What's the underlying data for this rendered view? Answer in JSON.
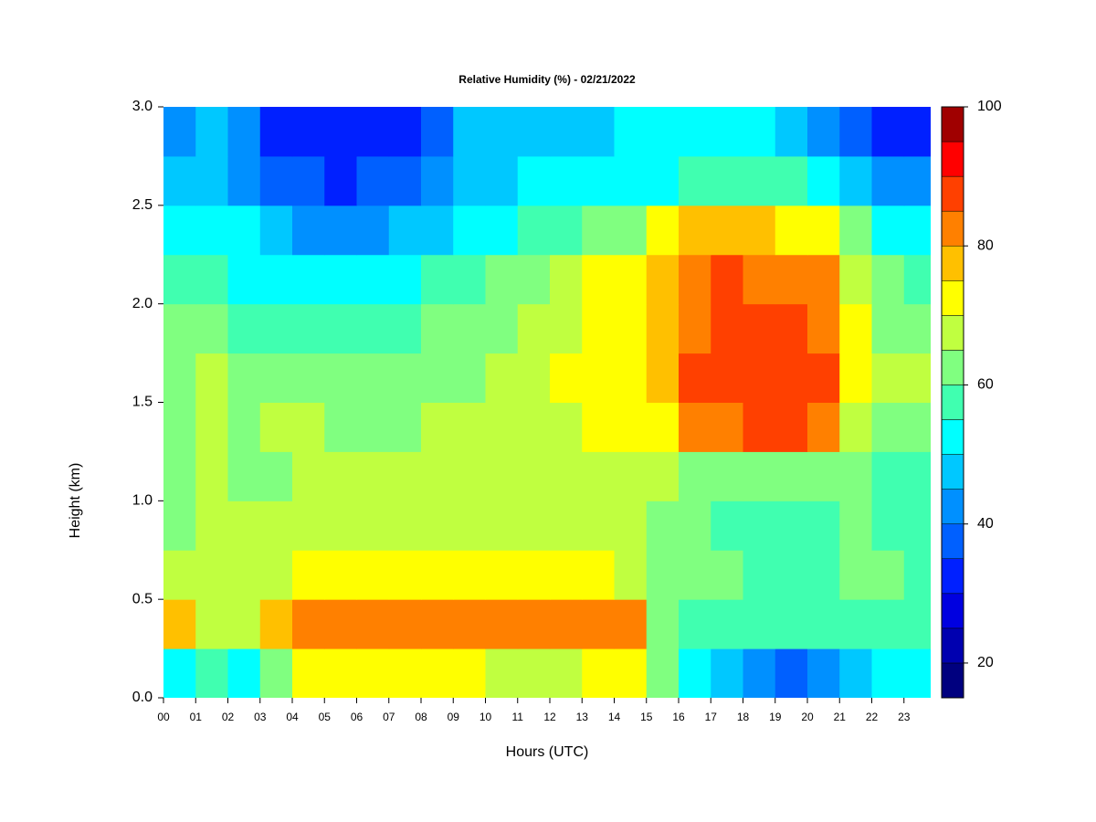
{
  "chart_data": {
    "type": "heatmap",
    "title": "Relative Humidity (%) - 02/21/2022",
    "x_label": "Hours (UTC)",
    "y_label": "Height (km)",
    "xlim": [
      0,
      23.83
    ],
    "ylim": [
      0,
      3
    ],
    "xticks": [
      {
        "value": 0,
        "label": "00"
      },
      {
        "value": 1,
        "label": "01"
      },
      {
        "value": 2,
        "label": "02"
      },
      {
        "value": 3,
        "label": "03"
      },
      {
        "value": 4,
        "label": "04"
      },
      {
        "value": 5,
        "label": "05"
      },
      {
        "value": 6,
        "label": "06"
      },
      {
        "value": 7,
        "label": "07"
      },
      {
        "value": 8,
        "label": "08"
      },
      {
        "value": 9,
        "label": "09"
      },
      {
        "value": 10,
        "label": "10"
      },
      {
        "value": 11,
        "label": "11"
      },
      {
        "value": 12,
        "label": "12"
      },
      {
        "value": 13,
        "label": "13"
      },
      {
        "value": 14,
        "label": "14"
      },
      {
        "value": 15,
        "label": "15"
      },
      {
        "value": 16,
        "label": "16"
      },
      {
        "value": 17,
        "label": "17"
      },
      {
        "value": 18,
        "label": "18"
      },
      {
        "value": 19,
        "label": "19"
      },
      {
        "value": 20,
        "label": "20"
      },
      {
        "value": 21,
        "label": "21"
      },
      {
        "value": 22,
        "label": "22"
      },
      {
        "value": 23,
        "label": "23"
      }
    ],
    "yticks": [
      {
        "value": 0,
        "label": "0.0"
      },
      0.5,
      {
        "value": 1,
        "label": "1.0"
      },
      1.5,
      {
        "value": 2,
        "label": "2.0"
      },
      2.5,
      {
        "value": 3,
        "label": "3.0"
      }
    ],
    "x": [
      0.5,
      1.5,
      2.5,
      3.5,
      4.5,
      5.5,
      6.5,
      7.5,
      8.5,
      9.5,
      10.5,
      11.5,
      12.5,
      13.5,
      14.5,
      15.5,
      16.5,
      17.5,
      18.5,
      19.5,
      20.5,
      21.5,
      22.5,
      23.5
    ],
    "y": [
      0.125,
      0.375,
      0.625,
      0.875,
      1.125,
      1.375,
      1.625,
      1.875,
      2.125,
      2.375,
      2.625,
      2.875
    ],
    "z": [
      [
        50,
        55,
        50,
        62,
        70,
        72,
        72,
        72,
        70,
        70,
        68,
        66,
        68,
        70,
        70,
        60,
        50,
        45,
        42,
        38,
        40,
        48,
        50,
        50
      ],
      [
        75,
        65,
        68,
        78,
        82,
        83,
        82,
        82,
        82,
        81,
        82,
        82,
        81,
        81,
        80,
        62,
        58,
        58,
        57,
        56,
        56,
        57,
        57,
        56
      ],
      [
        65,
        66,
        66,
        68,
        72,
        70,
        70,
        72,
        70,
        70,
        70,
        70,
        70,
        70,
        68,
        64,
        60,
        60,
        58,
        58,
        58,
        60,
        60,
        58
      ],
      [
        62,
        65,
        65,
        65,
        68,
        68,
        68,
        67,
        68,
        68,
        68,
        68,
        68,
        68,
        66,
        64,
        60,
        58,
        58,
        58,
        58,
        60,
        58,
        57
      ],
      [
        62,
        66,
        62,
        64,
        66,
        66,
        66,
        66,
        67,
        68,
        68,
        68,
        68,
        68,
        68,
        66,
        62,
        60,
        60,
        60,
        60,
        60,
        58,
        56
      ],
      [
        64,
        68,
        64,
        65,
        65,
        64,
        64,
        64,
        65,
        65,
        66,
        67,
        68,
        70,
        70,
        70,
        80,
        84,
        86,
        86,
        84,
        66,
        62,
        60
      ],
      [
        64,
        66,
        64,
        62,
        62,
        62,
        62,
        62,
        63,
        64,
        66,
        68,
        70,
        74,
        74,
        75,
        86,
        88,
        88,
        88,
        87,
        72,
        66,
        66
      ],
      [
        60,
        60,
        58,
        58,
        58,
        58,
        58,
        58,
        60,
        62,
        64,
        66,
        68,
        72,
        73,
        75,
        84,
        86,
        86,
        86,
        84,
        70,
        64,
        60
      ],
      [
        55,
        55,
        54,
        52,
        50,
        50,
        50,
        52,
        55,
        58,
        60,
        64,
        66,
        70,
        72,
        76,
        84,
        85,
        84,
        84,
        80,
        66,
        60,
        55
      ],
      [
        52,
        52,
        50,
        45,
        43,
        42,
        44,
        46,
        48,
        50,
        54,
        56,
        58,
        60,
        62,
        70,
        76,
        76,
        76,
        74,
        70,
        60,
        54,
        50
      ],
      [
        45,
        48,
        42,
        38,
        35,
        34,
        35,
        36,
        40,
        45,
        48,
        50,
        50,
        52,
        54,
        54,
        56,
        58,
        56,
        55,
        52,
        45,
        42,
        40
      ],
      [
        42,
        45,
        40,
        34,
        32,
        30,
        30,
        30,
        35,
        45,
        48,
        48,
        48,
        48,
        50,
        50,
        52,
        52,
        50,
        48,
        42,
        36,
        32,
        30
      ]
    ],
    "levels": [
      15,
      20,
      25,
      30,
      35,
      40,
      45,
      50,
      55,
      60,
      65,
      70,
      75,
      80,
      85,
      90,
      95,
      100
    ],
    "colors": [
      "#00007f",
      "#0000b0",
      "#0000e0",
      "#0020ff",
      "#0060ff",
      "#0090ff",
      "#00c8ff",
      "#00ffff",
      "#40ffb0",
      "#80ff80",
      "#c0ff40",
      "#ffff00",
      "#ffc000",
      "#ff8000",
      "#ff4000",
      "#ff0000",
      "#a00000"
    ],
    "colorbar_ticks": [
      20,
      40,
      60,
      80,
      100
    ]
  }
}
